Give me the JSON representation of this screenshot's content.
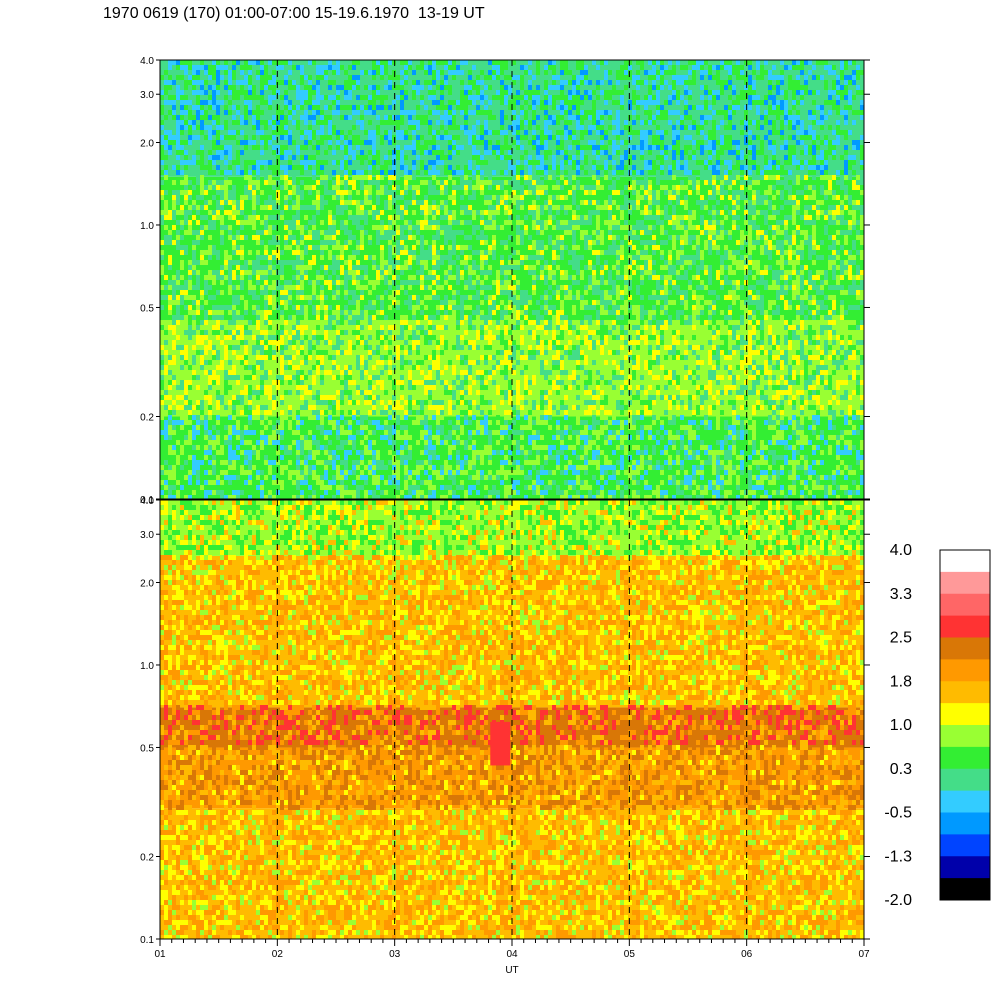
{
  "title": "1970 0619 (170) 01:00-07:00 15-19.6.1970  13-19 UT",
  "chart_data": [
    {
      "type": "heatmap",
      "panel": "top",
      "ylim": [
        0.1,
        4.0
      ],
      "yscale": "log",
      "y_ticks": [
        "0.1",
        "0.2",
        "0.5",
        "1.0",
        "2.0",
        "3.0",
        "4.0"
      ],
      "xlim": [
        1,
        7
      ],
      "x_ticks": [
        "01",
        "02",
        "03",
        "04",
        "05",
        "06",
        "07"
      ],
      "dashed_hours": [
        2,
        3,
        4,
        5,
        6
      ],
      "dominant_value_range": [
        -0.5,
        1.0
      ],
      "bands": [
        {
          "y_range": [
            0.1,
            0.2
          ],
          "value": 0.3
        },
        {
          "y_range": [
            0.2,
            0.45
          ],
          "value": 0.65
        },
        {
          "y_range": [
            0.45,
            1.5
          ],
          "value": 0.5
        },
        {
          "y_range": [
            1.5,
            4.0
          ],
          "value": 0.0
        }
      ]
    },
    {
      "type": "heatmap",
      "panel": "bottom",
      "ylim": [
        0.1,
        4.0
      ],
      "yscale": "log",
      "y_ticks": [
        "0.1",
        "0.2",
        "0.5",
        "1.0",
        "2.0",
        "3.0",
        "4.0"
      ],
      "xlim": [
        1,
        7
      ],
      "x_ticks": [
        "01",
        "02",
        "03",
        "04",
        "05",
        "06",
        "07"
      ],
      "xlabel": "UT",
      "dashed_hours": [
        2,
        3,
        4,
        5,
        6
      ],
      "dominant_value_range": [
        1.0,
        2.5
      ],
      "bands": [
        {
          "y_range": [
            0.1,
            0.3
          ],
          "value": 1.5
        },
        {
          "y_range": [
            0.3,
            0.5
          ],
          "value": 1.9
        },
        {
          "y_range": [
            0.5,
            0.7
          ],
          "value": 2.2
        },
        {
          "y_range": [
            0.7,
            2.5
          ],
          "value": 1.5
        },
        {
          "y_range": [
            2.5,
            4.0
          ],
          "value": 0.9
        }
      ],
      "hotspot": {
        "x": 3.9,
        "y_range": [
          0.43,
          0.62
        ],
        "value": 2.6
      }
    }
  ],
  "colorbar": {
    "labels": [
      "4.0",
      "3.3",
      "2.5",
      "1.8",
      "1.0",
      "0.3",
      "-0.5",
      "-1.3",
      "-2.0"
    ],
    "colors": [
      "#ffffff",
      "#ff9999",
      "#ff6666",
      "#ff3333",
      "#d97706",
      "#ff9900",
      "#ffbb00",
      "#ffff00",
      "#99ff33",
      "#33ee33",
      "#44dd88",
      "#33ccff",
      "#0099ff",
      "#0044ff",
      "#0000aa",
      "#000000"
    ]
  }
}
